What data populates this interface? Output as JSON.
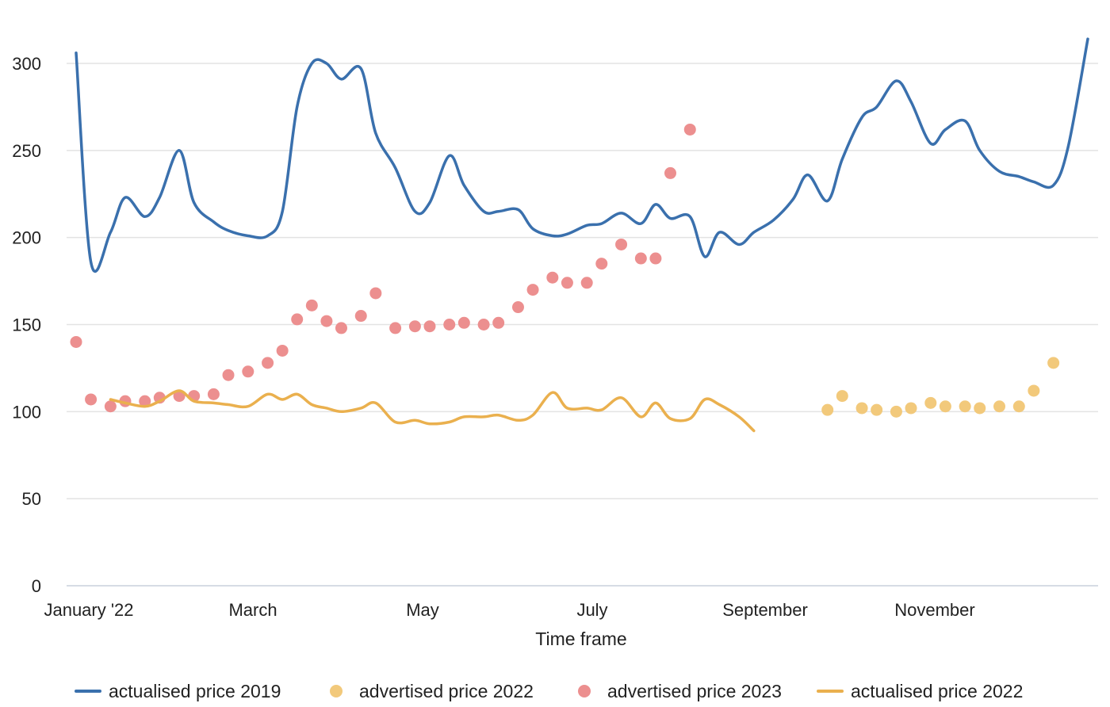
{
  "chart_data": {
    "type": "line",
    "title": "",
    "xlabel": "Time frame",
    "ylabel": "",
    "x_ticks": [
      "January '22",
      "March",
      "May",
      "July",
      "September",
      "November"
    ],
    "y_ticks": [
      0,
      50,
      100,
      150,
      200,
      250,
      300
    ],
    "ylim": [
      0,
      315
    ],
    "grid": true,
    "legend_position": "bottom",
    "series": [
      {
        "name": "actualised price 2019",
        "kind": "line",
        "color": "#3a70ad",
        "points": [
          [
            "2022-01-01",
            306
          ],
          [
            "2022-01-04",
            186
          ],
          [
            "2022-01-08",
            203
          ],
          [
            "2022-01-11",
            223
          ],
          [
            "2022-01-15",
            212
          ],
          [
            "2022-01-18",
            223
          ],
          [
            "2022-01-22",
            250
          ],
          [
            "2022-01-25",
            220
          ],
          [
            "2022-01-29",
            209
          ],
          [
            "2022-02-01",
            204
          ],
          [
            "2022-02-05",
            201
          ],
          [
            "2022-02-09",
            201
          ],
          [
            "2022-02-12",
            215
          ],
          [
            "2022-02-15",
            275
          ],
          [
            "2022-02-18",
            300
          ],
          [
            "2022-02-21",
            300
          ],
          [
            "2022-02-24",
            291
          ],
          [
            "2022-02-28",
            297
          ],
          [
            "2022-03-03",
            260
          ],
          [
            "2022-03-07",
            240
          ],
          [
            "2022-03-11",
            215
          ],
          [
            "2022-03-14",
            220
          ],
          [
            "2022-03-18",
            247
          ],
          [
            "2022-03-21",
            230
          ],
          [
            "2022-03-25",
            215
          ],
          [
            "2022-03-28",
            215
          ],
          [
            "2022-04-01",
            216
          ],
          [
            "2022-04-04",
            205
          ],
          [
            "2022-04-08",
            201
          ],
          [
            "2022-04-11",
            202
          ],
          [
            "2022-04-15",
            207
          ],
          [
            "2022-04-18",
            208
          ],
          [
            "2022-04-22",
            214
          ],
          [
            "2022-04-26",
            208
          ],
          [
            "2022-04-29",
            219
          ],
          [
            "2022-05-02",
            211
          ],
          [
            "2022-05-06",
            212
          ],
          [
            "2022-05-09",
            189
          ],
          [
            "2022-05-12",
            203
          ],
          [
            "2022-05-16",
            196
          ],
          [
            "2022-05-19",
            203
          ],
          [
            "2022-05-23",
            210
          ],
          [
            "2022-05-27",
            222
          ],
          [
            "2022-05-30",
            236
          ],
          [
            "2022-06-03",
            221
          ],
          [
            "2022-06-06",
            245
          ],
          [
            "2022-06-10",
            269
          ],
          [
            "2022-06-13",
            275
          ],
          [
            "2022-06-17",
            290
          ],
          [
            "2022-06-20",
            278
          ],
          [
            "2022-06-24",
            254
          ],
          [
            "2022-06-27",
            262
          ],
          [
            "2022-07-01",
            267
          ],
          [
            "2022-07-04",
            250
          ],
          [
            "2022-07-08",
            238
          ],
          [
            "2022-07-12",
            235
          ],
          [
            "2022-07-15",
            232
          ],
          [
            "2022-07-19",
            230
          ],
          [
            "2022-07-22",
            252
          ],
          [
            "2022-07-26",
            314
          ]
        ]
      },
      {
        "name": "advertised price 2022",
        "kind": "scatter",
        "color": "#f2c97b",
        "points": [
          [
            "2022-06-03",
            101
          ],
          [
            "2022-06-06",
            109
          ],
          [
            "2022-06-10",
            102
          ],
          [
            "2022-06-13",
            101
          ],
          [
            "2022-06-17",
            100
          ],
          [
            "2022-06-20",
            102
          ],
          [
            "2022-06-24",
            105
          ],
          [
            "2022-06-27",
            103
          ],
          [
            "2022-07-01",
            103
          ],
          [
            "2022-07-04",
            102
          ],
          [
            "2022-07-08",
            103
          ],
          [
            "2022-07-12",
            103
          ],
          [
            "2022-07-15",
            112
          ],
          [
            "2022-07-19",
            128
          ]
        ]
      },
      {
        "name": "advertised price 2023",
        "kind": "scatter",
        "color": "#ec8f8f",
        "points": [
          [
            "2022-01-01",
            140
          ],
          [
            "2022-01-04",
            107
          ],
          [
            "2022-01-08",
            103
          ],
          [
            "2022-01-11",
            106
          ],
          [
            "2022-01-15",
            106
          ],
          [
            "2022-01-18",
            108
          ],
          [
            "2022-01-22",
            109
          ],
          [
            "2022-01-25",
            109
          ],
          [
            "2022-01-29",
            110
          ],
          [
            "2022-02-01",
            121
          ],
          [
            "2022-02-05",
            123
          ],
          [
            "2022-02-09",
            128
          ],
          [
            "2022-02-12",
            135
          ],
          [
            "2022-02-15",
            153
          ],
          [
            "2022-02-18",
            161
          ],
          [
            "2022-02-21",
            152
          ],
          [
            "2022-02-24",
            148
          ],
          [
            "2022-02-28",
            155
          ],
          [
            "2022-03-03",
            168
          ],
          [
            "2022-03-07",
            148
          ],
          [
            "2022-03-11",
            149
          ],
          [
            "2022-03-14",
            149
          ],
          [
            "2022-03-18",
            150
          ],
          [
            "2022-03-21",
            151
          ],
          [
            "2022-03-25",
            150
          ],
          [
            "2022-03-28",
            151
          ],
          [
            "2022-04-01",
            160
          ],
          [
            "2022-04-04",
            170
          ],
          [
            "2022-04-08",
            177
          ],
          [
            "2022-04-11",
            174
          ],
          [
            "2022-04-15",
            174
          ],
          [
            "2022-04-18",
            185
          ],
          [
            "2022-04-22",
            196
          ],
          [
            "2022-04-26",
            188
          ],
          [
            "2022-04-29",
            188
          ],
          [
            "2022-05-02",
            237
          ],
          [
            "2022-05-06",
            262
          ]
        ]
      },
      {
        "name": "actualised price 2022",
        "kind": "line",
        "color": "#eab04e",
        "points": [
          [
            "2022-01-08",
            107
          ],
          [
            "2022-01-11",
            105
          ],
          [
            "2022-01-15",
            103
          ],
          [
            "2022-01-18",
            106
          ],
          [
            "2022-01-22",
            112
          ],
          [
            "2022-01-25",
            106
          ],
          [
            "2022-01-29",
            105
          ],
          [
            "2022-02-01",
            104
          ],
          [
            "2022-02-05",
            103
          ],
          [
            "2022-02-09",
            110
          ],
          [
            "2022-02-12",
            107
          ],
          [
            "2022-02-15",
            110
          ],
          [
            "2022-02-18",
            104
          ],
          [
            "2022-02-21",
            102
          ],
          [
            "2022-02-24",
            100
          ],
          [
            "2022-02-28",
            102
          ],
          [
            "2022-03-03",
            105
          ],
          [
            "2022-03-07",
            94
          ],
          [
            "2022-03-11",
            95
          ],
          [
            "2022-03-14",
            93
          ],
          [
            "2022-03-18",
            94
          ],
          [
            "2022-03-21",
            97
          ],
          [
            "2022-03-25",
            97
          ],
          [
            "2022-03-28",
            98
          ],
          [
            "2022-04-01",
            95
          ],
          [
            "2022-04-04",
            98
          ],
          [
            "2022-04-08",
            111
          ],
          [
            "2022-04-11",
            102
          ],
          [
            "2022-04-15",
            102
          ],
          [
            "2022-04-18",
            101
          ],
          [
            "2022-04-22",
            108
          ],
          [
            "2022-04-26",
            97
          ],
          [
            "2022-04-29",
            105
          ],
          [
            "2022-05-02",
            96
          ],
          [
            "2022-05-06",
            96
          ],
          [
            "2022-05-09",
            107
          ],
          [
            "2022-05-12",
            104
          ],
          [
            "2022-05-16",
            97
          ],
          [
            "2022-05-19",
            89
          ]
        ]
      }
    ]
  }
}
